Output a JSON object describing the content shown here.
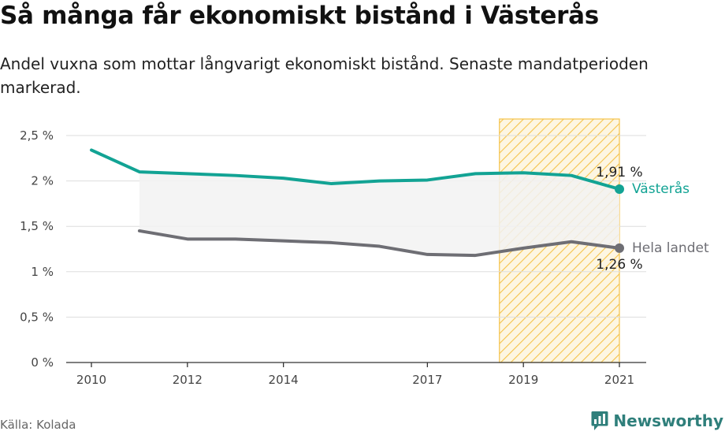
{
  "header": {
    "title": "Så många får ekonomiskt bistånd i Västerås",
    "subtitle": "Andel vuxna som mottar långvarigt ekonomiskt bistånd. Senaste mandatperioden markerad."
  },
  "footer": {
    "source": "Källa: Kolada",
    "brand": "Newsworthy"
  },
  "colors": {
    "vasteras": "#12a394",
    "sweden": "#6e6e74",
    "highlight": "#f5c34a",
    "gap": "#f2f2f2",
    "grid": "#dddddd"
  },
  "icons": {
    "brand": "newsworthy-logo-icon"
  },
  "chart_data": {
    "type": "line",
    "ylim": [
      0,
      2.5
    ],
    "y_ticks": [
      {
        "value": 0,
        "label": "0 %"
      },
      {
        "value": 0.5,
        "label": "0,5 %"
      },
      {
        "value": 1,
        "label": "1 %"
      },
      {
        "value": 1.5,
        "label": "1,5 %"
      },
      {
        "value": 2,
        "label": "2 %"
      },
      {
        "value": 2.5,
        "label": "2,5 %"
      }
    ],
    "x_ticks": [
      2010,
      2012,
      2014,
      2017,
      2019,
      2021
    ],
    "highlight_period": [
      2018.5,
      2021
    ],
    "series": [
      {
        "name": "Västerås",
        "color": "#12a394",
        "x": [
          2010,
          2011,
          2012,
          2013,
          2014,
          2015,
          2016,
          2017,
          2018,
          2019,
          2020,
          2021
        ],
        "values": [
          2.34,
          2.1,
          2.08,
          2.06,
          2.03,
          1.97,
          2.0,
          2.01,
          2.08,
          2.09,
          2.06,
          1.91
        ],
        "end_label": "1,91 %"
      },
      {
        "name": "Hela landet",
        "color": "#6e6e74",
        "x": [
          2011,
          2012,
          2013,
          2014,
          2015,
          2016,
          2017,
          2018,
          2019,
          2020,
          2021
        ],
        "values": [
          1.45,
          1.36,
          1.36,
          1.34,
          1.32,
          1.28,
          1.19,
          1.18,
          1.26,
          1.33,
          1.26
        ],
        "end_label": "1,26 %"
      }
    ]
  }
}
